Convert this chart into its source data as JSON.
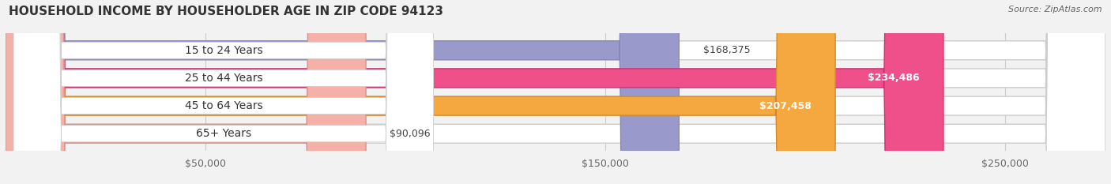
{
  "title": "HOUSEHOLD INCOME BY HOUSEHOLDER AGE IN ZIP CODE 94123",
  "source": "Source: ZipAtlas.com",
  "categories": [
    "15 to 24 Years",
    "25 to 44 Years",
    "45 to 64 Years",
    "65+ Years"
  ],
  "values": [
    168375,
    234486,
    207458,
    90096
  ],
  "bar_colors": [
    "#9999cc",
    "#f0508a",
    "#f5a840",
    "#f5b0a8"
  ],
  "bar_edge_colors": [
    "#8888bb",
    "#cc3070",
    "#d58828",
    "#d59090"
  ],
  "label_texts": [
    "$168,375",
    "$234,486",
    "$207,458",
    "$90,096"
  ],
  "label_inside": [
    false,
    true,
    true,
    false
  ],
  "label_colors_inside": [
    "#333333",
    "#ffffff",
    "#ffffff",
    "#333333"
  ],
  "x_ticks": [
    50000,
    150000,
    250000
  ],
  "x_tick_labels": [
    "$50,000",
    "$150,000",
    "$250,000"
  ],
  "xlim_max": 275000,
  "background_color": "#f2f2f2",
  "bar_bg_color": "#ffffff",
  "title_fontsize": 11,
  "source_fontsize": 8,
  "label_fontsize": 9,
  "tick_fontsize": 9,
  "category_fontsize": 10
}
